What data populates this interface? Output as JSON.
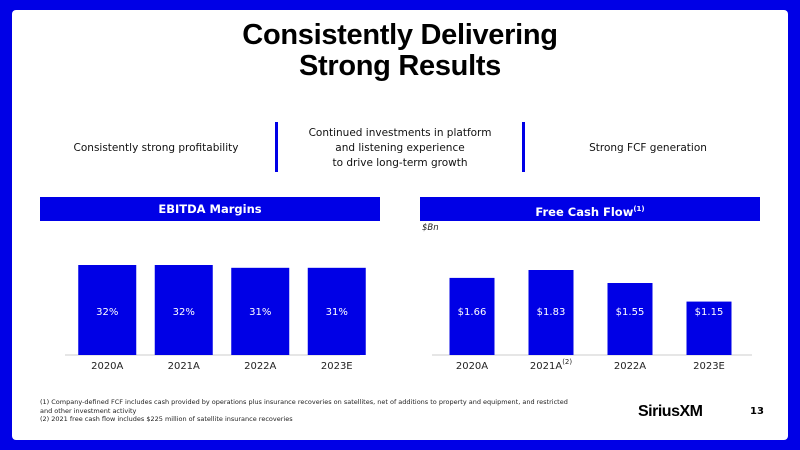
{
  "header": {
    "title_lines": [
      "Consistently Delivering",
      "Strong Results"
    ]
  },
  "pillars": [
    {
      "lines": [
        "Consistently strong profitability"
      ]
    },
    {
      "lines": [
        "Continued investments in platform",
        "and listening experience",
        "to drive long-term growth"
      ]
    },
    {
      "lines": [
        "Strong FCF generation"
      ]
    }
  ],
  "chart_data": [
    {
      "type": "bar",
      "title": "EBITDA Margins",
      "categories": [
        "2020A",
        "2021A",
        "2022A",
        "2023E"
      ],
      "values": [
        32,
        32,
        31,
        31
      ],
      "value_labels": [
        "32%",
        "32%",
        "31%",
        "31%"
      ],
      "color": "#0000e6"
    },
    {
      "type": "bar",
      "title": "Free Cash Flow",
      "title_footnote": "(1)",
      "unit_label": "$Bn",
      "categories": [
        "2020A",
        "2021A",
        "2022A",
        "2023E"
      ],
      "footnote_markers": [
        null,
        "(2)",
        null,
        null
      ],
      "values": [
        1.66,
        1.83,
        1.55,
        1.15
      ],
      "value_labels": [
        "$1.66",
        "$1.83",
        "$1.55",
        "$1.15"
      ],
      "color": "#0000e6"
    }
  ],
  "footnotes": [
    "(1)  Company-defined FCF includes cash provided by operations plus insurance recoveries on satellites, net of additions to property and equipment, and restricted and other investment activity",
    "(2)  2021 free cash flow includes $225 million of satellite insurance recoveries"
  ],
  "footer": {
    "logo": "SiriusXM",
    "page_number": "13"
  }
}
